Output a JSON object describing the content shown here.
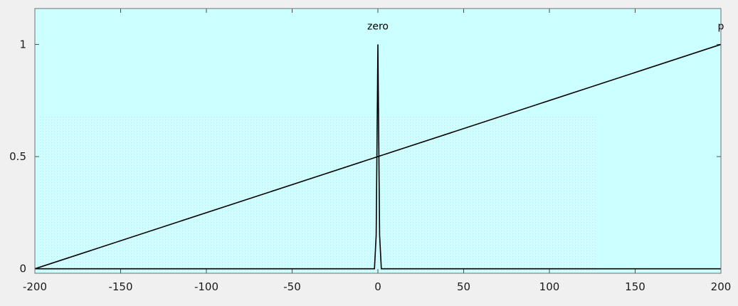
{
  "chart_data": {
    "type": "line",
    "xlim": [
      -200,
      200
    ],
    "ylim": [
      -0.02,
      1.16
    ],
    "xticks": [
      -200,
      -150,
      -100,
      -50,
      0,
      50,
      100,
      150,
      200
    ],
    "yticks": [
      0,
      0.5,
      1
    ],
    "xtick_labels": [
      "-200",
      "-150",
      "-100",
      "-50",
      "0",
      "50",
      "100",
      "150",
      "200"
    ],
    "ytick_labels": [
      "0",
      "0.5",
      "1"
    ],
    "grid": false,
    "background_color": "#ccffff",
    "figure_color": "#f0f0f0",
    "line_color": "#000000",
    "series": [
      {
        "name": "zero",
        "label_at": [
          0,
          1
        ],
        "x": [
          -200,
          -2,
          -1,
          0,
          1,
          2,
          200
        ],
        "y": [
          0,
          0,
          0.15,
          1,
          0.15,
          0,
          0
        ]
      },
      {
        "name": "p",
        "label_at": [
          200,
          1
        ],
        "x": [
          -200,
          200
        ],
        "y": [
          0,
          1
        ]
      }
    ]
  }
}
